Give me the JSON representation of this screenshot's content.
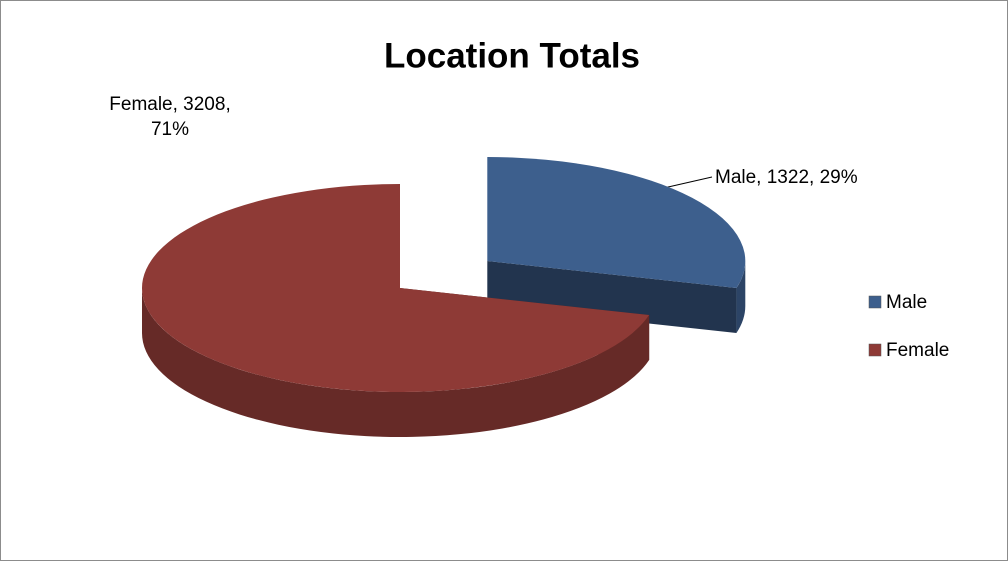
{
  "chart_data": {
    "type": "pie",
    "title": "Location Totals",
    "categories": [
      "Male",
      "Female"
    ],
    "values": [
      1322,
      3208
    ],
    "value_labels": [
      "Male, 1322, 29%",
      "Female, 3208, 71%"
    ],
    "colors": [
      "#3d5f8d",
      "#8e3a36"
    ],
    "legend": "right"
  }
}
